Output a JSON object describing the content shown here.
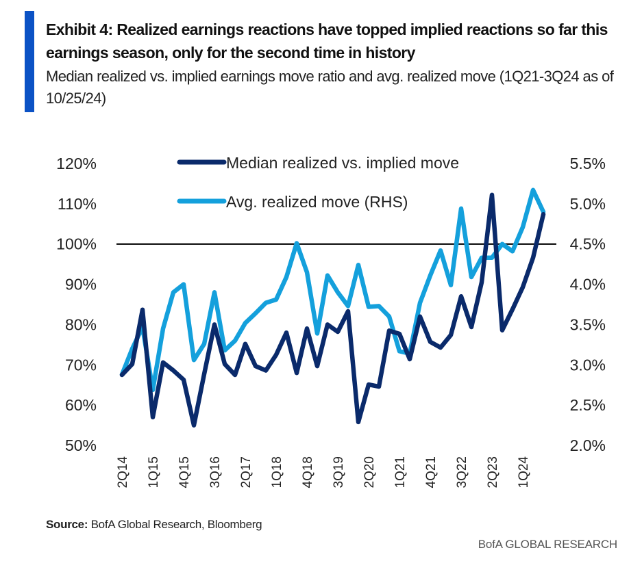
{
  "header": {
    "title": "Exhibit 4: Realized earnings reactions have topped implied reactions so far this earnings season, only for the second time in history",
    "subtitle": "Median realized vs. implied earnings move ratio and avg. realized move (1Q21-3Q24 as of 10/25/24)"
  },
  "footer": {
    "source_label": "Source:",
    "source_text": " BofA Global Research, Bloomberg",
    "brand": "BofA GLOBAL RESEARCH"
  },
  "colors": {
    "accent_bar": "#0b52c5",
    "median_series": "#0a2a6b",
    "avg_series": "#14a0dc",
    "reference_line": "#222222"
  },
  "chart_data": {
    "type": "line",
    "title": "Median realized vs. implied earnings move ratio and avg. realized move",
    "x": [
      "2Q14",
      "3Q14",
      "4Q14",
      "1Q15",
      "2Q15",
      "3Q15",
      "4Q15",
      "1Q16",
      "2Q16",
      "3Q16",
      "4Q16",
      "1Q17",
      "2Q17",
      "3Q17",
      "4Q17",
      "1Q18",
      "2Q18",
      "3Q18",
      "4Q18",
      "1Q19",
      "2Q19",
      "3Q19",
      "4Q19",
      "1Q20",
      "2Q20",
      "3Q20",
      "4Q20",
      "1Q21",
      "2Q21",
      "3Q21",
      "4Q21",
      "1Q22",
      "2Q22",
      "3Q22",
      "4Q22",
      "1Q23",
      "2Q23",
      "3Q23",
      "4Q23",
      "1Q24",
      "2Q24",
      "3Q24"
    ],
    "x_tick_labels": [
      "2Q14",
      "1Q15",
      "4Q15",
      "3Q16",
      "2Q17",
      "1Q18",
      "4Q18",
      "3Q19",
      "2Q20",
      "1Q21",
      "4Q21",
      "3Q22",
      "2Q23",
      "1Q24"
    ],
    "series": [
      {
        "name": "Median realized vs. implied move",
        "axis": "left",
        "unit": "%",
        "values": [
          67.5,
          70.2,
          83.7,
          57.0,
          70.6,
          68.6,
          66.3,
          55.0,
          67.7,
          80.0,
          70.2,
          67.5,
          75.2,
          69.7,
          68.6,
          72.5,
          78.0,
          68.0,
          79.0,
          69.7,
          80.0,
          78.2,
          83.3,
          55.8,
          65.1,
          64.6,
          78.5,
          77.7,
          71.4,
          82.0,
          75.7,
          74.3,
          77.4,
          87.0,
          79.4,
          90.5,
          112.2,
          78.6,
          83.8,
          89.3,
          96.6,
          107.4
        ]
      },
      {
        "name": "Avg. realized move (RHS)",
        "axis": "right",
        "unit": "%",
        "values": [
          2.88,
          3.2,
          3.47,
          2.69,
          3.45,
          3.9,
          4.0,
          3.06,
          3.26,
          3.9,
          3.18,
          3.3,
          3.52,
          3.64,
          3.77,
          3.81,
          4.09,
          4.51,
          4.15,
          3.39,
          4.11,
          3.9,
          3.73,
          4.24,
          3.72,
          3.73,
          3.6,
          3.17,
          3.14,
          3.77,
          4.11,
          4.42,
          3.99,
          4.94,
          4.09,
          4.33,
          4.33,
          4.5,
          4.41,
          4.71,
          5.17,
          4.9
        ]
      }
    ],
    "y_left": {
      "min": 50,
      "max": 120,
      "step": 10,
      "tick_labels": [
        "120%",
        "110%",
        "100%",
        "90%",
        "80%",
        "70%",
        "60%",
        "50%"
      ]
    },
    "y_right": {
      "min": 2.0,
      "max": 5.5,
      "step": 0.5,
      "tick_labels": [
        "5.5%",
        "5.0%",
        "4.5%",
        "4.0%",
        "3.5%",
        "3.0%",
        "2.5%",
        "2.0%"
      ]
    },
    "reference_line": {
      "axis": "left",
      "value": 100
    },
    "legend": {
      "placement": "top-center",
      "entries": [
        "Median realized vs. implied move",
        "Avg. realized move (RHS)"
      ]
    },
    "grid": false,
    "xlabel": "",
    "ylabel": ""
  }
}
